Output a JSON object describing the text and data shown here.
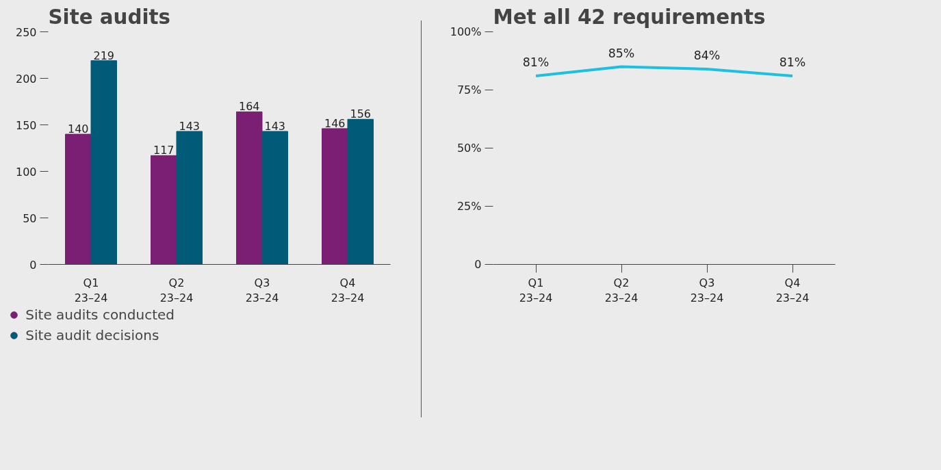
{
  "chart_data": [
    {
      "type": "bar",
      "title": "Site audits",
      "categories": [
        "Q1\n23–24",
        "Q2\n23–24",
        "Q3\n23–24",
        "Q4\n23–24"
      ],
      "series": [
        {
          "name": "Site audits conducted",
          "color": "#7a1f73",
          "values": [
            140,
            117,
            164,
            146
          ]
        },
        {
          "name": "Site audit decisions",
          "color": "#005a78",
          "values": [
            219,
            143,
            143,
            156
          ]
        }
      ],
      "data_labels": true,
      "ylim": [
        0,
        250
      ],
      "yticks": [
        0,
        50,
        100,
        150,
        200,
        250
      ],
      "grid": false,
      "legend": "bottom"
    },
    {
      "type": "line",
      "title": "Met all 42 requirements",
      "categories": [
        "Q1\n23–24",
        "Q2\n23–24",
        "Q3\n23–24",
        "Q4\n23–24"
      ],
      "series": [
        {
          "color": "#1ec0e0",
          "values": [
            81,
            85,
            84,
            81
          ],
          "value_labels": [
            "81%",
            "85%",
            "84%",
            "81%"
          ]
        }
      ],
      "ylim": [
        0,
        100
      ],
      "yticks": [
        0,
        {
          "value": 25,
          "label": "25%"
        },
        {
          "value": 50,
          "label": "50%"
        },
        {
          "value": 75,
          "label": "75%"
        },
        {
          "value": 100,
          "label": "100%"
        }
      ],
      "grid": false
    }
  ]
}
